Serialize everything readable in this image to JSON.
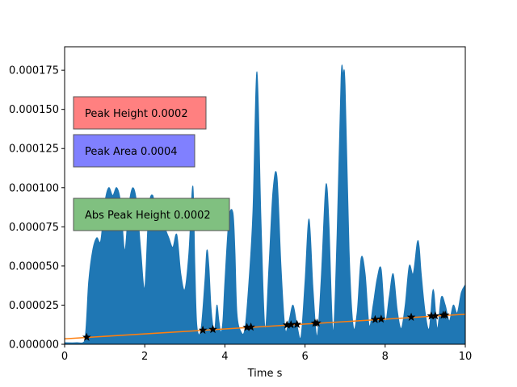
{
  "chart_data": {
    "type": "area",
    "xlabel": "Time s",
    "ylabel": "",
    "xlim": [
      0,
      10
    ],
    "ylim": [
      0,
      0.00019
    ],
    "x_ticks": [
      0,
      2,
      4,
      6,
      8,
      10
    ],
    "x_tick_labels": [
      "0",
      "2",
      "4",
      "6",
      "8",
      "10"
    ],
    "y_ticks": [
      0,
      2.5e-05,
      5e-05,
      7.5e-05,
      0.0001,
      0.000125,
      0.00015,
      0.000175
    ],
    "y_tick_labels": [
      "0.000000",
      "0.000025",
      "0.000050",
      "0.000075",
      "0.000100",
      "0.000125",
      "0.000150",
      "0.000175"
    ],
    "signal": {
      "color": "#1f77b4",
      "x": [
        0.0,
        0.3,
        0.5,
        0.6,
        0.7,
        0.8,
        0.9,
        1.0,
        1.1,
        1.2,
        1.3,
        1.4,
        1.5,
        1.6,
        1.7,
        1.8,
        1.9,
        2.0,
        2.1,
        2.2,
        2.3,
        2.4,
        2.5,
        2.6,
        2.7,
        2.8,
        2.9,
        3.0,
        3.1,
        3.2,
        3.25,
        3.3,
        3.4,
        3.5,
        3.55,
        3.6,
        3.65,
        3.7,
        3.75,
        3.8,
        3.85,
        3.9,
        3.95,
        4.0,
        4.1,
        4.2,
        4.25,
        4.3,
        4.4,
        4.5,
        4.6,
        4.7,
        4.8,
        4.9,
        5.0,
        5.1,
        5.2,
        5.3,
        5.4,
        5.5,
        5.6,
        5.7,
        5.8,
        5.9,
        6.0,
        6.1,
        6.2,
        6.3,
        6.4,
        6.5,
        6.55,
        6.6,
        6.7,
        6.8,
        6.9,
        6.95,
        7.0,
        7.1,
        7.2,
        7.3,
        7.4,
        7.5,
        7.6,
        7.7,
        7.8,
        7.9,
        8.0,
        8.1,
        8.2,
        8.3,
        8.4,
        8.5,
        8.6,
        8.7,
        8.8,
        8.85,
        8.9,
        9.0,
        9.1,
        9.2,
        9.3,
        9.4,
        9.5,
        9.6,
        9.7,
        9.8,
        9.9,
        10.0
      ],
      "y": [
        1e-06,
        1e-06,
        2e-06,
        4e-05,
        6e-05,
        6.8e-05,
        6.6e-05,
        9e-05,
        0.0001,
        9.5e-05,
        0.0001,
        9e-05,
        6e-05,
        8.8e-05,
        0.0001,
        9e-05,
        6e-05,
        3.6e-05,
        8.6e-05,
        9.5e-05,
        8e-05,
        8.8e-05,
        7.5e-05,
        6.8e-05,
        6.2e-05,
        7e-05,
        4.5e-05,
        3.5e-05,
        5.8e-05,
        0.000101,
        5e-05,
        1.2e-05,
        9e-06,
        4e-05,
        6e-05,
        5e-05,
        2.5e-05,
        1.2e-05,
        1e-05,
        2.5e-05,
        1.5e-05,
        8e-06,
        1.5e-05,
        4e-05,
        8e-05,
        8.4e-05,
        6e-05,
        2e-05,
        8e-06,
        1e-05,
        4e-05,
        8.5e-05,
        0.000174,
        8e-05,
        1e-05,
        5e-05,
        9.8e-05,
        0.000107,
        5e-05,
        1e-05,
        1.5e-05,
        2.5e-05,
        1.2e-05,
        5e-06,
        4e-05,
        8e-05,
        3.5e-05,
        5e-06,
        4e-05,
        9.5e-05,
        0.0001,
        7.5e-05,
        8e-06,
        7e-05,
        0.00017,
        0.000172,
        0.000165,
        6e-05,
        1.2e-05,
        2e-05,
        5.5e-05,
        4.5e-05,
        1.2e-05,
        2.5e-05,
        4.2e-05,
        4.8e-05,
        1.5e-05,
        3e-05,
        4.5e-05,
        2.2e-05,
        1e-05,
        2.5e-05,
        5e-05,
        4.5e-05,
        6.5e-05,
        6.2e-05,
        4.5e-05,
        2e-05,
        1e-05,
        3.5e-05,
        1e-05,
        3e-05,
        2.5e-05,
        1.5e-05,
        2.5e-05,
        2e-05,
        3.3e-05,
        3.8e-05
      ]
    },
    "baseline": {
      "color": "#ff7f0e",
      "x": [
        0,
        10
      ],
      "y": [
        3.5e-06,
        1.92e-05
      ]
    },
    "peak_markers": {
      "marker": "star",
      "color": "#000000",
      "points": [
        [
          0.55,
          4.5e-06
        ],
        [
          3.45,
          9e-06
        ],
        [
          3.7,
          9.5e-06
        ],
        [
          4.55,
          1.08e-05
        ],
        [
          4.65,
          1.1e-05
        ],
        [
          5.55,
          1.23e-05
        ],
        [
          5.65,
          1.25e-05
        ],
        [
          5.8,
          1.27e-05
        ],
        [
          6.25,
          1.35e-05
        ],
        [
          6.3,
          1.36e-05
        ],
        [
          7.75,
          1.58e-05
        ],
        [
          7.9,
          1.61e-05
        ],
        [
          8.65,
          1.73e-05
        ],
        [
          9.15,
          1.81e-05
        ],
        [
          9.25,
          1.82e-05
        ],
        [
          9.45,
          1.86e-05
        ],
        [
          9.5,
          1.87e-05
        ]
      ]
    },
    "annotations": [
      {
        "text": "Peak Height 0.0002",
        "color": "#ff8080"
      },
      {
        "text": "Peak Area 0.0004",
        "color": "#8080ff"
      },
      {
        "text": "Abs Peak Height 0.0002",
        "color": "#80c080"
      }
    ]
  }
}
